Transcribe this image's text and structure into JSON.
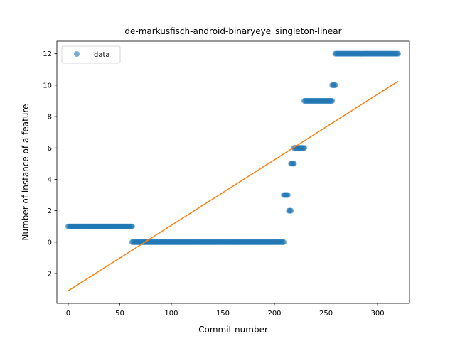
{
  "chart_data": {
    "type": "scatter",
    "title": "de-markusfisch-android-binaryeye_singleton-linear",
    "xlabel": "Commit number",
    "ylabel": "Number of instance of a feature",
    "xlim": [
      -11,
      331
    ],
    "ylim": [
      -3.9,
      12.8
    ],
    "xticks": [
      0,
      50,
      100,
      150,
      200,
      250,
      300
    ],
    "yticks": [
      -2,
      0,
      2,
      4,
      6,
      8,
      10,
      12
    ],
    "grid": false,
    "legend": {
      "position": "top-left",
      "entries": [
        "data"
      ]
    },
    "colors": {
      "data": "#1f77b4",
      "fit": "#ff7f0e"
    },
    "series": [
      {
        "name": "data",
        "kind": "scatter",
        "segments": [
          {
            "x_from": 0,
            "x_to": 62,
            "y": 1
          },
          {
            "x_from": 62,
            "x_to": 209,
            "y": 0
          },
          {
            "x_from": 209,
            "x_to": 213,
            "y": 3
          },
          {
            "x_from": 214,
            "x_to": 216,
            "y": 2
          },
          {
            "x_from": 216,
            "x_to": 219,
            "y": 5
          },
          {
            "x_from": 219,
            "x_to": 229,
            "y": 6
          },
          {
            "x_from": 229,
            "x_to": 256,
            "y": 9
          },
          {
            "x_from": 256,
            "x_to": 259,
            "y": 10
          },
          {
            "x_from": 259,
            "x_to": 320,
            "y": 12
          }
        ]
      },
      {
        "kind": "line",
        "x": [
          0,
          320
        ],
        "y": [
          -3.1,
          10.25
        ]
      }
    ]
  }
}
